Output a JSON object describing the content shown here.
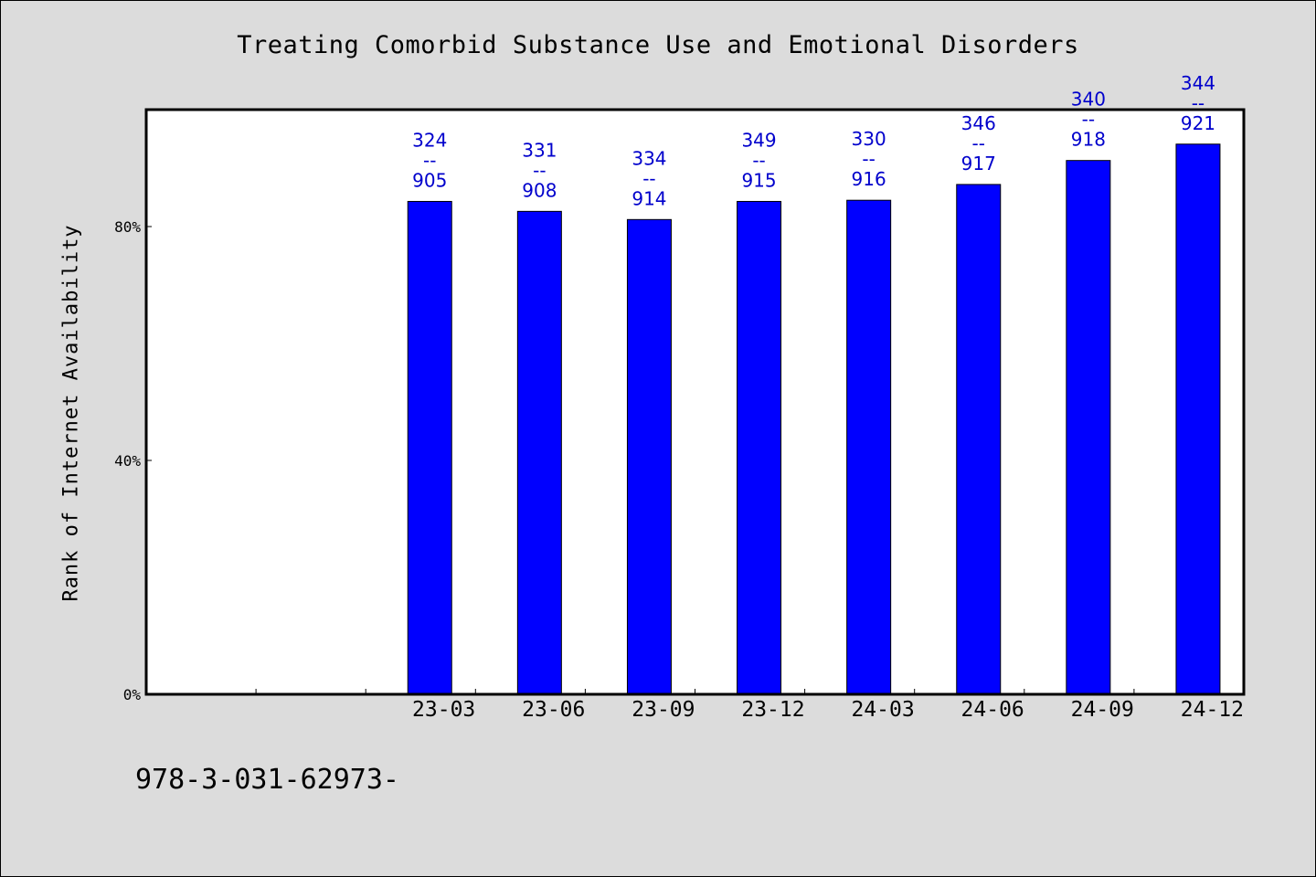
{
  "chart_data": {
    "type": "bar",
    "title": "Treating Comorbid Substance Use and Emotional Disorders",
    "ylabel": "Rank of Internet Availability",
    "xlabel": "",
    "ylim": [
      0,
      100
    ],
    "yticks": [
      0,
      40,
      80
    ],
    "ytick_labels": [
      "0%",
      "40%",
      "80%"
    ],
    "legend": "none",
    "grid": false,
    "bar_color": "#0000ff",
    "label_color": "#0000cc",
    "categories": [
      "",
      "",
      "23-03",
      "23-06",
      "23-09",
      "23-12",
      "24-03",
      "24-06",
      "24-09",
      "24-12"
    ],
    "values": [
      null,
      null,
      84.3,
      82.6,
      81.2,
      84.3,
      84.5,
      87.2,
      91.3,
      94.1
    ],
    "data_labels": [
      [],
      [],
      [
        "324",
        "--",
        "905"
      ],
      [
        "331",
        "--",
        "908"
      ],
      [
        "334",
        "--",
        "914"
      ],
      [
        "349",
        "--",
        "915"
      ],
      [
        "330",
        "--",
        "916"
      ],
      [
        "346",
        "--",
        "917"
      ],
      [
        "340",
        "--",
        "918"
      ],
      [
        "344",
        "--",
        "921"
      ]
    ]
  },
  "footnote": "978-3-031-62973-"
}
